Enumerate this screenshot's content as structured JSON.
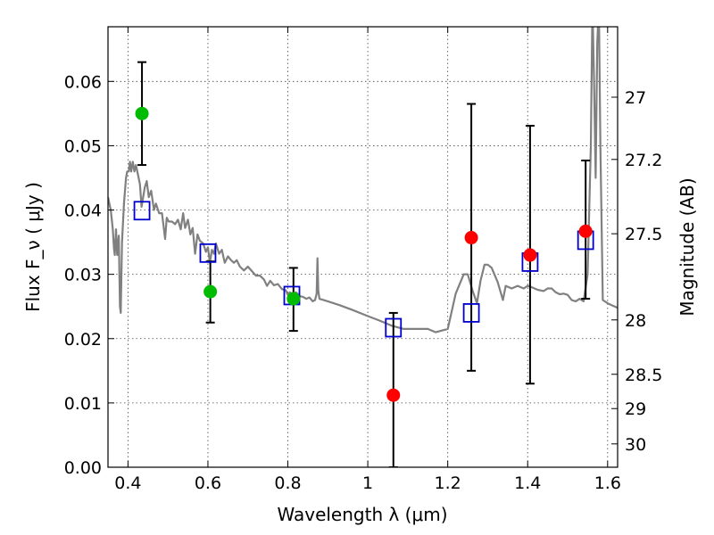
{
  "chart_data": {
    "type": "scatter",
    "xlabel": "Wavelength  λ (μm)",
    "ylabel": "Flux  F_ν  ( μJy )",
    "y2label": "Magnitude (AB)",
    "xlim": [
      0.35,
      1.625
    ],
    "ylim": [
      0.0,
      0.0685
    ],
    "grid": true,
    "x_ticks": [
      {
        "value": 0.4,
        "label": "0.4"
      },
      {
        "value": 0.6,
        "label": "0.6"
      },
      {
        "value": 0.8,
        "label": "0.8"
      },
      {
        "value": 1.0,
        "label": "1"
      },
      {
        "value": 1.2,
        "label": "1.2"
      },
      {
        "value": 1.4,
        "label": "1.4"
      },
      {
        "value": 1.6,
        "label": "1.6"
      }
    ],
    "y_ticks": [
      {
        "value": 0.0,
        "label": "0.00"
      },
      {
        "value": 0.01,
        "label": "0.01"
      },
      {
        "value": 0.02,
        "label": "0.02"
      },
      {
        "value": 0.03,
        "label": "0.03"
      },
      {
        "value": 0.04,
        "label": "0.04"
      },
      {
        "value": 0.05,
        "label": "0.05"
      },
      {
        "value": 0.06,
        "label": "0.06"
      }
    ],
    "y2_ticks": [
      {
        "value": 27,
        "label": "27"
      },
      {
        "value": 27.2,
        "label": "27.2"
      },
      {
        "value": 27.5,
        "label": "27.5"
      },
      {
        "value": 28,
        "label": "28"
      },
      {
        "value": 28.5,
        "label": "28.5"
      },
      {
        "value": 29,
        "label": "29"
      },
      {
        "value": 30,
        "label": "30"
      }
    ],
    "observed_points": [
      {
        "x": 0.435,
        "y": 0.055,
        "err_low": 0.047,
        "err_high": 0.063,
        "color": "#00bb00"
      },
      {
        "x": 0.606,
        "y": 0.0273,
        "err_low": 0.0225,
        "err_high": 0.032,
        "color": "#00bb00"
      },
      {
        "x": 0.814,
        "y": 0.0262,
        "err_low": 0.0212,
        "err_high": 0.031,
        "color": "#00bb00"
      },
      {
        "x": 1.064,
        "y": 0.0112,
        "err_low": 0.0,
        "err_high": 0.024,
        "color": "#ff0000"
      },
      {
        "x": 1.259,
        "y": 0.0357,
        "err_low": 0.015,
        "err_high": 0.0565,
        "color": "#ff0000"
      },
      {
        "x": 1.406,
        "y": 0.033,
        "err_low": 0.013,
        "err_high": 0.0531,
        "color": "#ff0000"
      },
      {
        "x": 1.545,
        "y": 0.0367,
        "err_low": 0.0262,
        "err_high": 0.0477,
        "color": "#ff0000"
      }
    ],
    "model_points": [
      {
        "x": 0.435,
        "y": 0.0399
      },
      {
        "x": 0.6,
        "y": 0.0333
      },
      {
        "x": 0.81,
        "y": 0.0267
      },
      {
        "x": 1.064,
        "y": 0.0217
      },
      {
        "x": 1.259,
        "y": 0.024
      },
      {
        "x": 1.406,
        "y": 0.0319
      },
      {
        "x": 1.545,
        "y": 0.0353
      }
    ],
    "model_spectrum": [
      [
        0.35,
        0.042
      ],
      [
        0.357,
        0.04
      ],
      [
        0.362,
        0.037
      ],
      [
        0.365,
        0.034
      ],
      [
        0.367,
        0.033
      ],
      [
        0.37,
        0.037
      ],
      [
        0.373,
        0.033
      ],
      [
        0.377,
        0.036
      ],
      [
        0.38,
        0.025
      ],
      [
        0.382,
        0.024
      ],
      [
        0.385,
        0.035
      ],
      [
        0.39,
        0.041
      ],
      [
        0.395,
        0.045
      ],
      [
        0.398,
        0.046
      ],
      [
        0.402,
        0.046
      ],
      [
        0.405,
        0.0475
      ],
      [
        0.408,
        0.046
      ],
      [
        0.412,
        0.0475
      ],
      [
        0.416,
        0.046
      ],
      [
        0.42,
        0.047
      ],
      [
        0.425,
        0.0455
      ],
      [
        0.43,
        0.044
      ],
      [
        0.434,
        0.0405
      ],
      [
        0.438,
        0.042
      ],
      [
        0.442,
        0.0435
      ],
      [
        0.447,
        0.0445
      ],
      [
        0.452,
        0.042
      ],
      [
        0.458,
        0.043
      ],
      [
        0.465,
        0.04
      ],
      [
        0.47,
        0.041
      ],
      [
        0.478,
        0.0395
      ],
      [
        0.485,
        0.0395
      ],
      [
        0.49,
        0.037
      ],
      [
        0.493,
        0.0355
      ],
      [
        0.497,
        0.0388
      ],
      [
        0.502,
        0.0382
      ],
      [
        0.51,
        0.0382
      ],
      [
        0.518,
        0.0378
      ],
      [
        0.525,
        0.0385
      ],
      [
        0.532,
        0.037
      ],
      [
        0.538,
        0.0395
      ],
      [
        0.543,
        0.0372
      ],
      [
        0.55,
        0.0385
      ],
      [
        0.556,
        0.0362
      ],
      [
        0.562,
        0.0372
      ],
      [
        0.568,
        0.0332
      ],
      [
        0.574,
        0.0362
      ],
      [
        0.58,
        0.0352
      ],
      [
        0.588,
        0.0348
      ],
      [
        0.595,
        0.0335
      ],
      [
        0.6,
        0.0342
      ],
      [
        0.605,
        0.0318
      ],
      [
        0.61,
        0.0338
      ],
      [
        0.615,
        0.0332
      ],
      [
        0.62,
        0.0348
      ],
      [
        0.628,
        0.0332
      ],
      [
        0.635,
        0.0338
      ],
      [
        0.642,
        0.0318
      ],
      [
        0.65,
        0.0328
      ],
      [
        0.658,
        0.0322
      ],
      [
        0.665,
        0.0318
      ],
      [
        0.672,
        0.0322
      ],
      [
        0.68,
        0.0312
      ],
      [
        0.69,
        0.0306
      ],
      [
        0.7,
        0.0312
      ],
      [
        0.71,
        0.0305
      ],
      [
        0.72,
        0.0298
      ],
      [
        0.73,
        0.0298
      ],
      [
        0.74,
        0.0292
      ],
      [
        0.748,
        0.0282
      ],
      [
        0.756,
        0.029
      ],
      [
        0.765,
        0.0283
      ],
      [
        0.775,
        0.0285
      ],
      [
        0.785,
        0.0277
      ],
      [
        0.795,
        0.0275
      ],
      [
        0.8,
        0.0268
      ],
      [
        0.805,
        0.0272
      ],
      [
        0.812,
        0.0268
      ],
      [
        0.82,
        0.0272
      ],
      [
        0.83,
        0.0266
      ],
      [
        0.838,
        0.0265
      ],
      [
        0.846,
        0.0262
      ],
      [
        0.854,
        0.0264
      ],
      [
        0.862,
        0.0258
      ],
      [
        0.868,
        0.026
      ],
      [
        0.872,
        0.027
      ],
      [
        0.874,
        0.0325
      ],
      [
        0.876,
        0.0275
      ],
      [
        0.879,
        0.0262
      ],
      [
        0.9,
        0.0258
      ],
      [
        0.93,
        0.0252
      ],
      [
        0.96,
        0.0245
      ],
      [
        1.0,
        0.0235
      ],
      [
        1.03,
        0.0228
      ],
      [
        1.06,
        0.022
      ],
      [
        1.09,
        0.0215
      ],
      [
        1.12,
        0.0215
      ],
      [
        1.15,
        0.0215
      ],
      [
        1.17,
        0.021
      ],
      [
        1.2,
        0.0215
      ],
      [
        1.22,
        0.027
      ],
      [
        1.24,
        0.03
      ],
      [
        1.25,
        0.03
      ],
      [
        1.262,
        0.0275
      ],
      [
        1.273,
        0.0255
      ],
      [
        1.282,
        0.029
      ],
      [
        1.292,
        0.0315
      ],
      [
        1.3,
        0.0315
      ],
      [
        1.31,
        0.031
      ],
      [
        1.325,
        0.0288
      ],
      [
        1.338,
        0.026
      ],
      [
        1.345,
        0.0282
      ],
      [
        1.36,
        0.0278
      ],
      [
        1.375,
        0.0282
      ],
      [
        1.39,
        0.0278
      ],
      [
        1.4,
        0.0282
      ],
      [
        1.41,
        0.028
      ],
      [
        1.425,
        0.0276
      ],
      [
        1.44,
        0.0274
      ],
      [
        1.45,
        0.0278
      ],
      [
        1.46,
        0.0278
      ],
      [
        1.47,
        0.0272
      ],
      [
        1.48,
        0.0269
      ],
      [
        1.49,
        0.027
      ],
      [
        1.5,
        0.0268
      ],
      [
        1.51,
        0.026
      ],
      [
        1.52,
        0.0258
      ],
      [
        1.53,
        0.0262
      ],
      [
        1.54,
        0.0258
      ],
      [
        1.55,
        0.03
      ],
      [
        1.558,
        0.05
      ],
      [
        1.562,
        0.072
      ],
      [
        1.566,
        0.06
      ],
      [
        1.57,
        0.045
      ],
      [
        1.574,
        0.066
      ],
      [
        1.578,
        0.072
      ],
      [
        1.582,
        0.05
      ],
      [
        1.588,
        0.026
      ],
      [
        1.6,
        0.0255
      ],
      [
        1.61,
        0.0252
      ],
      [
        1.625,
        0.0248
      ]
    ],
    "colors": {
      "model_line": "#808080",
      "model_square": "#0000cc",
      "error_bar": "#000000",
      "grid": "#444444"
    }
  }
}
